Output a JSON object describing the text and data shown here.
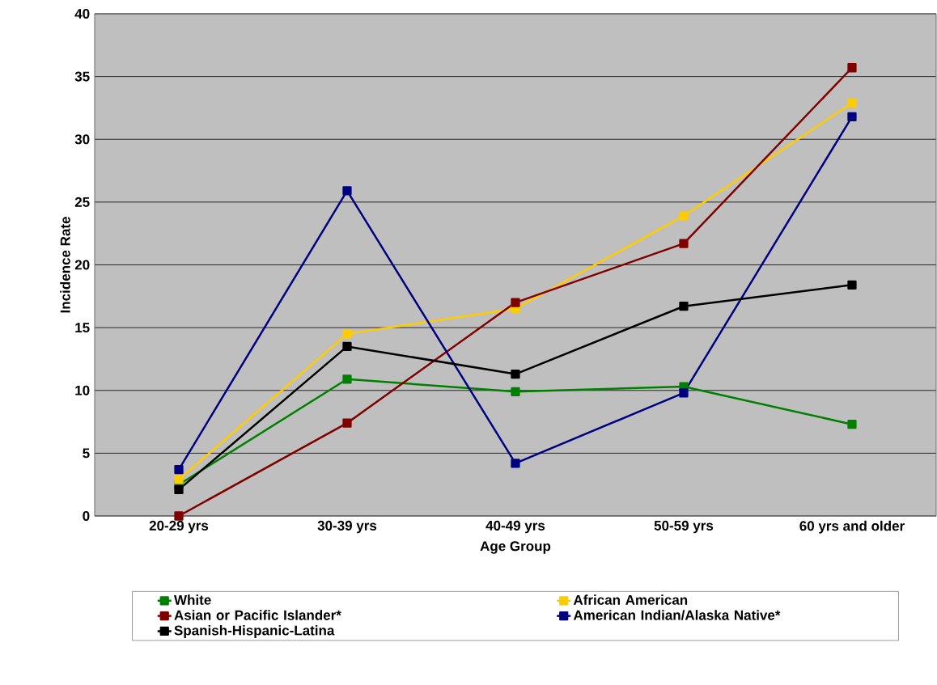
{
  "chart_data": {
    "type": "line",
    "xlabel": "Age Group",
    "ylabel": "Incidence Rate",
    "categories": [
      "20-29 yrs",
      "30-39 yrs",
      "40-49 yrs",
      "50-59 yrs",
      "60 yrs and older"
    ],
    "series": [
      {
        "name": "White",
        "color": "#008000",
        "values": [
          2.5,
          10.9,
          9.9,
          10.3,
          7.3
        ]
      },
      {
        "name": "African American",
        "color": "#ffcc00",
        "values": [
          2.9,
          14.5,
          16.5,
          23.9,
          32.9
        ]
      },
      {
        "name": "Asian or Pacific Islander*",
        "color": "#800000",
        "values": [
          0,
          7.4,
          17.0,
          21.7,
          35.7
        ]
      },
      {
        "name": "American Indian/Alaska Native*",
        "color": "#000080",
        "values": [
          3.7,
          25.9,
          4.2,
          9.8,
          31.8
        ]
      },
      {
        "name": "Spanish-Hispanic-Latina",
        "color": "#000000",
        "values": [
          2.1,
          13.5,
          11.3,
          16.7,
          18.4
        ]
      }
    ],
    "ylim": [
      0,
      40
    ],
    "yticks": [
      0,
      5,
      10,
      15,
      20,
      25,
      30,
      35,
      40
    ],
    "grid": "y",
    "legend": "bottom",
    "marker": "square",
    "line_style": "solid"
  }
}
